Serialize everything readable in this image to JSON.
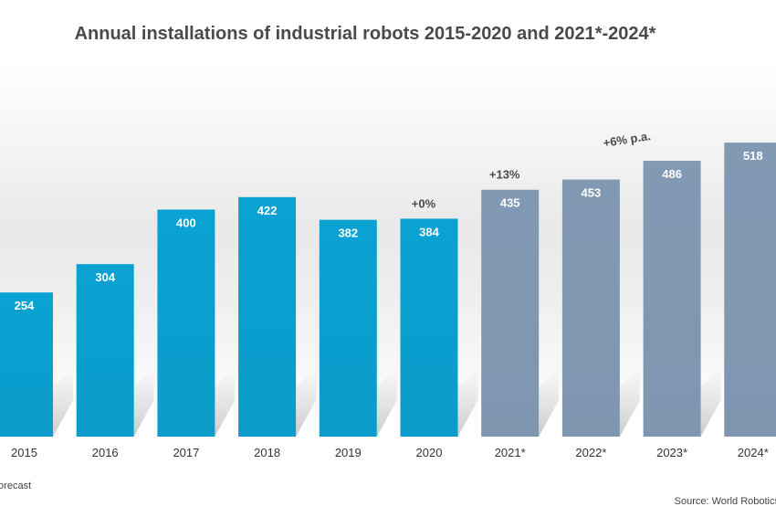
{
  "title": "Annual installations of industrial robots 2015-2020 and 2021*-2024*",
  "footnote": "forecast",
  "source": "Source: World Robotics",
  "colors": {
    "actual": "#0aa2d2",
    "forecast": "#8299b4",
    "label": "#ffffff",
    "annotation": "#4a4a4a",
    "tick": "#333333"
  },
  "chart_data": {
    "type": "bar",
    "categories": [
      "2015",
      "2016",
      "2017",
      "2018",
      "2019",
      "2020",
      "2021*",
      "2022*",
      "2023*",
      "2024*"
    ],
    "values": [
      254,
      304,
      400,
      422,
      382,
      384,
      435,
      453,
      486,
      518
    ],
    "data_labels": [
      "254",
      "304",
      "400",
      "422",
      "382",
      "384",
      "435",
      "453",
      "486",
      "518"
    ],
    "forecast": [
      false,
      false,
      false,
      false,
      false,
      false,
      true,
      true,
      true,
      true
    ],
    "annotations": [
      {
        "text": "+0%",
        "category": "2020"
      },
      {
        "text": "+13%",
        "category": "2021*"
      },
      {
        "text": "+6% p.a.",
        "category": "2022*"
      }
    ],
    "xlabel": "",
    "ylabel": "",
    "grid": false,
    "legend": "none"
  }
}
